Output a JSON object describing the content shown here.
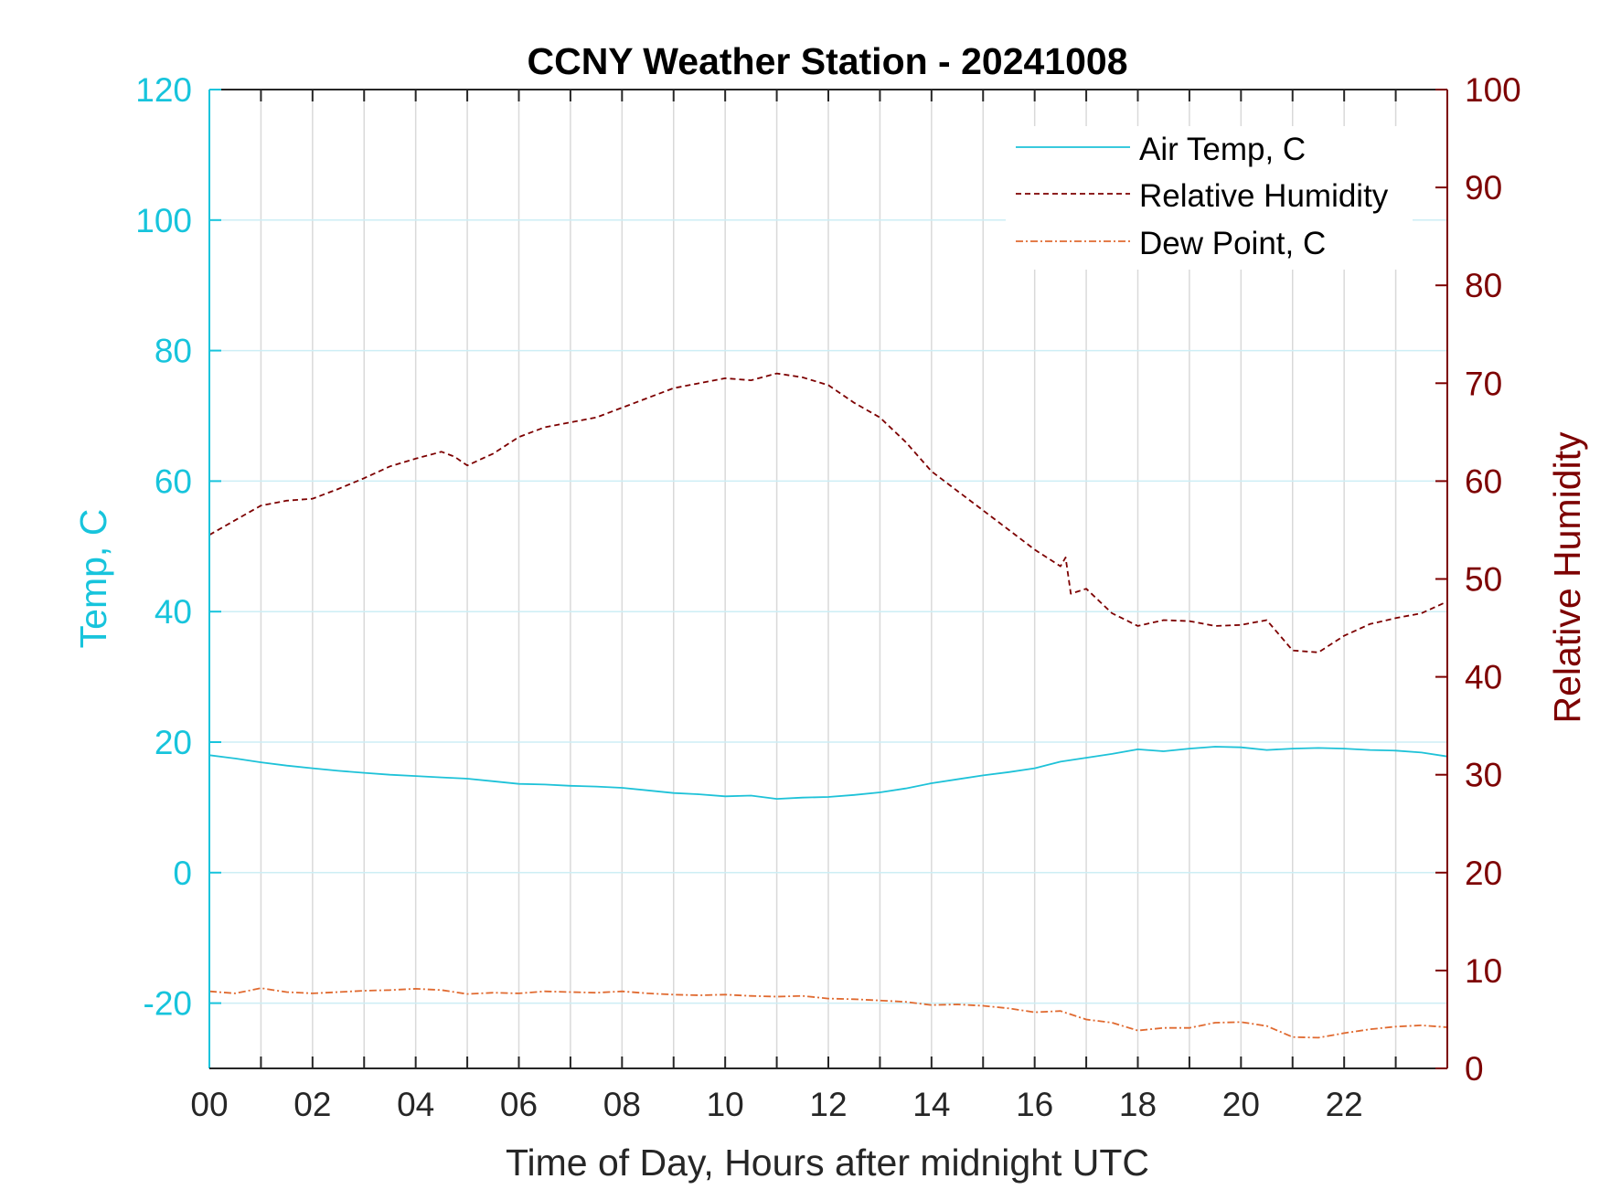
{
  "chart_data": {
    "type": "line",
    "title": "CCNY Weather Station - 20241008",
    "xlabel": "Time of Day, Hours after midnight UTC",
    "ylabel_left": "Temp, C",
    "ylabel_right": "Relative Humidity",
    "xlim": [
      0,
      24
    ],
    "ylim_left": [
      -30,
      120
    ],
    "ylim_right": [
      0,
      100
    ],
    "x_ticks": [
      0,
      2,
      4,
      6,
      8,
      10,
      12,
      14,
      16,
      18,
      20,
      22
    ],
    "x_tick_labels": [
      "00",
      "02",
      "04",
      "06",
      "08",
      "10",
      "12",
      "14",
      "16",
      "18",
      "20",
      "22"
    ],
    "y_left_ticks": [
      -20,
      0,
      20,
      40,
      60,
      80,
      100,
      120
    ],
    "y_left_tick_labels": [
      "-20",
      "0",
      "20",
      "40",
      "60",
      "80",
      "100",
      "120"
    ],
    "y_right_ticks": [
      0,
      10,
      20,
      30,
      40,
      50,
      60,
      70,
      80,
      90,
      100
    ],
    "y_right_tick_labels": [
      "0",
      "10",
      "20",
      "30",
      "40",
      "50",
      "60",
      "70",
      "80",
      "90",
      "100"
    ],
    "grid": true,
    "legend_position": "top-right",
    "colors": {
      "left_axis": "#17c4dc",
      "right_axis": "#7d0000",
      "air_temp": "#1ec2d8",
      "relative_humidity": "#7d0000",
      "dew_point": "#e06a30",
      "axes": "#262626",
      "grid_vertical": "#d9d9d9",
      "grid_horizontal": "#cdeef5"
    },
    "series": [
      {
        "name": "Air Temp, C",
        "axis": "left",
        "style": "solid",
        "x": [
          0,
          0.5,
          1,
          1.5,
          2,
          2.5,
          3,
          3.5,
          4,
          4.5,
          5,
          5.5,
          6,
          6.5,
          7,
          7.5,
          8,
          8.5,
          9,
          9.5,
          10,
          10.5,
          11,
          11.5,
          12,
          12.5,
          13,
          13.5,
          14,
          14.5,
          15,
          15.5,
          16,
          16.5,
          17,
          17.5,
          18,
          18.5,
          19,
          19.5,
          20,
          20.5,
          21,
          21.5,
          22,
          22.5,
          23,
          23.5,
          24
        ],
        "y": [
          18.0,
          17.5,
          16.9,
          16.4,
          16.0,
          15.6,
          15.3,
          15.0,
          14.8,
          14.6,
          14.4,
          14.0,
          13.6,
          13.5,
          13.3,
          13.2,
          13.0,
          12.6,
          12.2,
          12.0,
          11.7,
          11.8,
          11.3,
          11.5,
          11.6,
          11.9,
          12.3,
          12.9,
          13.7,
          14.3,
          14.9,
          15.4,
          16.0,
          17.0,
          17.6,
          18.2,
          18.9,
          18.6,
          19.0,
          19.3,
          19.2,
          18.8,
          19.0,
          19.1,
          19.0,
          18.8,
          18.7,
          18.4,
          17.8
        ]
      },
      {
        "name": "Relative Humidity",
        "axis": "right",
        "style": "dashed",
        "x": [
          0,
          0.5,
          1,
          1.5,
          2,
          2.5,
          3,
          3.5,
          4,
          4.5,
          4.75,
          5,
          5.5,
          6,
          6.5,
          7,
          7.5,
          8,
          8.5,
          9,
          9.5,
          10,
          10.5,
          11,
          11.5,
          12,
          12.5,
          13,
          13.5,
          14,
          14.5,
          15,
          15.5,
          16,
          16.5,
          16.6,
          16.7,
          17,
          17.5,
          18,
          18.5,
          19,
          19.5,
          20,
          20.5,
          21,
          21.5,
          22,
          22.5,
          23,
          23.5,
          24
        ],
        "y": [
          54.5,
          56.0,
          57.5,
          58.0,
          58.2,
          59.2,
          60.3,
          61.5,
          62.3,
          63.0,
          62.5,
          61.6,
          62.8,
          64.5,
          65.5,
          66.0,
          66.5,
          67.5,
          68.5,
          69.5,
          70.0,
          70.5,
          70.3,
          71.0,
          70.6,
          69.8,
          68.0,
          66.5,
          64.0,
          61.0,
          59.0,
          57.0,
          55.0,
          53.0,
          51.3,
          52.2,
          48.5,
          49.0,
          46.5,
          45.2,
          45.8,
          45.7,
          45.2,
          45.3,
          45.8,
          42.7,
          42.5,
          44.2,
          45.4,
          46.0,
          46.5,
          47.7
        ]
      },
      {
        "name": "Dew Point, C",
        "axis": "left",
        "style": "dashdot",
        "x": [
          0,
          0.5,
          1,
          1.5,
          2,
          2.5,
          3,
          3.5,
          4,
          4.5,
          5,
          5.5,
          6,
          6.5,
          7,
          7.5,
          8,
          8.5,
          9,
          9.5,
          10,
          10.5,
          11,
          11.5,
          12,
          12.5,
          13,
          13.5,
          14,
          14.5,
          15,
          15.5,
          16,
          16.5,
          17,
          17.5,
          18,
          18.5,
          19,
          19.5,
          20,
          20.5,
          21,
          21.5,
          22,
          22.5,
          23,
          23.5,
          24
        ],
        "y": [
          -18.2,
          -18.5,
          -17.7,
          -18.3,
          -18.5,
          -18.3,
          -18.1,
          -18.0,
          -17.8,
          -18.0,
          -18.6,
          -18.4,
          -18.5,
          -18.2,
          -18.3,
          -18.4,
          -18.2,
          -18.5,
          -18.7,
          -18.8,
          -18.7,
          -18.9,
          -19.0,
          -18.9,
          -19.3,
          -19.4,
          -19.6,
          -19.8,
          -20.3,
          -20.2,
          -20.4,
          -20.8,
          -21.4,
          -21.2,
          -22.5,
          -23.0,
          -24.2,
          -23.8,
          -23.8,
          -23.0,
          -22.9,
          -23.5,
          -25.2,
          -25.3,
          -24.6,
          -24.0,
          -23.6,
          -23.4,
          -23.7
        ]
      }
    ]
  }
}
